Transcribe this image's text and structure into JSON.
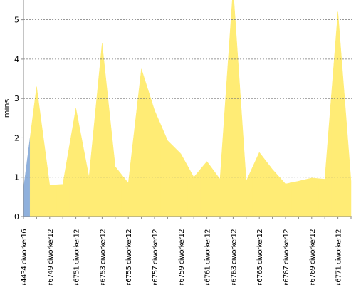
{
  "chart_data": {
    "type": "area",
    "y_label": "mins",
    "categories": [
      "#4434 ciworker16",
      null,
      "#6749 ciworker12",
      null,
      "#6751 ciworker12",
      null,
      "#6753 ciworker12",
      null,
      "#6755 ciworker12",
      null,
      "#6757 ciworker12",
      null,
      "#6759 ciworker12",
      null,
      "#6761 ciworker12",
      null,
      "#6763 ciworker12",
      null,
      "#6765 ciworker12",
      null,
      "#6767 ciworker12",
      null,
      "#6769 ciworker12",
      null,
      "#6771 ciworker12",
      null
    ],
    "values": [
      0.7,
      3.3,
      0.8,
      0.82,
      2.75,
      1.0,
      4.4,
      1.27,
      0.85,
      3.75,
      2.7,
      1.93,
      1.6,
      1.0,
      1.4,
      0.95,
      5.8,
      0.9,
      1.63,
      1.2,
      0.83,
      0.9,
      0.98,
      0.95,
      5.2,
      0.9
    ],
    "colors": [
      "#8fb0dc",
      "#ffec75",
      "#ffec75",
      "#ffec75",
      "#ffec75",
      "#ffec75",
      "#ffec75",
      "#ffec75",
      "#ffec75",
      "#ffec75",
      "#ffec75",
      "#ffec75",
      "#ffec75",
      "#ffec75",
      "#ffec75",
      "#ffec75",
      "#ffec75",
      "#ffec75",
      "#ffec75",
      "#ffec75",
      "#ffec75",
      "#ffec75",
      "#ffec75",
      "#ffec75",
      "#ffec75",
      "#ffec75"
    ],
    "ylim": [
      0,
      5.5
    ],
    "yticks": [
      0,
      1,
      2,
      3,
      4,
      5
    ],
    "grid": true
  }
}
